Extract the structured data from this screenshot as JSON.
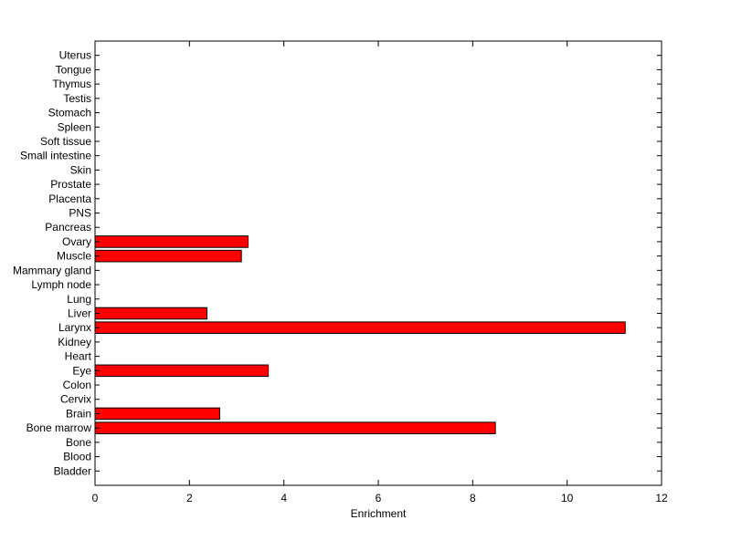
{
  "chart_data": {
    "type": "bar",
    "orientation": "horizontal",
    "title": "",
    "xlabel": "Enrichment",
    "ylabel": "",
    "xlim": [
      0,
      12
    ],
    "ylim": [
      0,
      31
    ],
    "xticks": [
      "0",
      "2",
      "4",
      "6",
      "8",
      "10",
      "12"
    ],
    "grid": false,
    "bar_color": "#ff0000",
    "edge_color": "#000000",
    "categories": [
      "Bladder",
      "Blood",
      "Bone",
      "Bone marrow",
      "Brain",
      "Cervix",
      "Colon",
      "Eye",
      "Heart",
      "Kidney",
      "Larynx",
      "Liver",
      "Lung",
      "Lymph node",
      "Mammary gland",
      "Muscle",
      "Ovary",
      "Pancreas",
      "PNS",
      "Placenta",
      "Prostate",
      "Skin",
      "Small intestine",
      "Soft tissue",
      "Spleen",
      "Stomach",
      "Testis",
      "Thymus",
      "Tongue",
      "Uterus"
    ],
    "values": [
      0,
      0,
      0,
      8.48,
      2.64,
      0,
      0,
      3.67,
      0,
      0,
      11.23,
      2.37,
      0,
      0,
      0,
      3.1,
      3.24,
      0,
      0,
      0,
      0,
      0,
      0,
      0,
      0,
      0,
      0,
      0,
      0,
      0
    ]
  }
}
